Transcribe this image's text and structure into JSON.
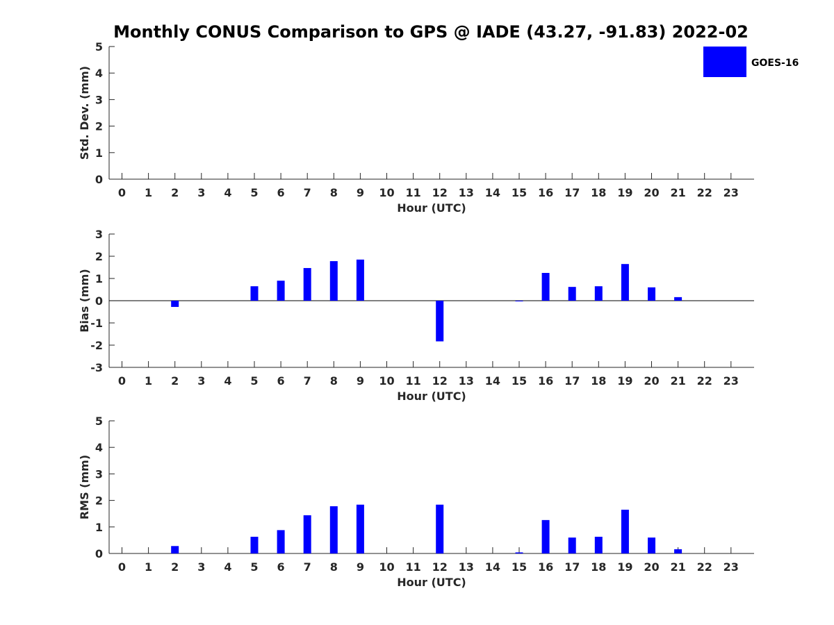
{
  "title": "Monthly CONUS Comparison to GPS @ IADE (43.27, -91.83) 2022-02",
  "legend": {
    "label": "GOES-16"
  },
  "colors": {
    "bar": "#0000ff",
    "axis": "#262626",
    "text": "#262626"
  },
  "chart_data": [
    {
      "type": "bar",
      "ylabel": "Std. Dev. (mm)",
      "xlabel": "Hour (UTC)",
      "ylim": [
        0,
        5
      ],
      "yticks": [
        "0",
        "1",
        "2",
        "3",
        "4",
        "5"
      ],
      "categories": [
        "0",
        "1",
        "2",
        "3",
        "4",
        "5",
        "6",
        "7",
        "8",
        "9",
        "10",
        "11",
        "12",
        "13",
        "14",
        "15",
        "16",
        "17",
        "18",
        "19",
        "20",
        "21",
        "22",
        "23"
      ],
      "series": [
        {
          "name": "GOES-16",
          "values": [
            null,
            null,
            null,
            null,
            null,
            null,
            null,
            null,
            null,
            null,
            null,
            null,
            null,
            null,
            null,
            null,
            null,
            null,
            null,
            null,
            null,
            null,
            null,
            null
          ]
        }
      ],
      "grid": false,
      "legend_position": "top-right"
    },
    {
      "type": "bar",
      "ylabel": "Bias (mm)",
      "xlabel": "Hour (UTC)",
      "ylim": [
        -3,
        3
      ],
      "yticks": [
        "-3",
        "-2",
        "-1",
        "0",
        "1",
        "2",
        "3"
      ],
      "categories": [
        "0",
        "1",
        "2",
        "3",
        "4",
        "5",
        "6",
        "7",
        "8",
        "9",
        "10",
        "11",
        "12",
        "13",
        "14",
        "15",
        "16",
        "17",
        "18",
        "19",
        "20",
        "21",
        "22",
        "23"
      ],
      "series": [
        {
          "name": "GOES-16",
          "values": [
            null,
            null,
            -0.28,
            null,
            null,
            0.65,
            0.9,
            1.47,
            1.78,
            1.85,
            null,
            null,
            -1.83,
            null,
            null,
            0.0,
            1.25,
            0.62,
            0.65,
            1.65,
            0.6,
            0.16,
            null,
            null
          ]
        }
      ],
      "grid": false
    },
    {
      "type": "bar",
      "ylabel": "RMS (mm)",
      "xlabel": "Hour (UTC)",
      "ylim": [
        0,
        5
      ],
      "yticks": [
        "0",
        "1",
        "2",
        "3",
        "4",
        "5"
      ],
      "categories": [
        "0",
        "1",
        "2",
        "3",
        "4",
        "5",
        "6",
        "7",
        "8",
        "9",
        "10",
        "11",
        "12",
        "13",
        "14",
        "15",
        "16",
        "17",
        "18",
        "19",
        "20",
        "21",
        "22",
        "23"
      ],
      "series": [
        {
          "name": "GOES-16",
          "values": [
            null,
            null,
            0.28,
            null,
            null,
            0.63,
            0.88,
            1.44,
            1.78,
            1.84,
            null,
            null,
            1.84,
            null,
            null,
            0.04,
            1.26,
            0.6,
            0.63,
            1.65,
            0.6,
            0.16,
            null,
            null
          ]
        }
      ],
      "grid": false
    }
  ]
}
